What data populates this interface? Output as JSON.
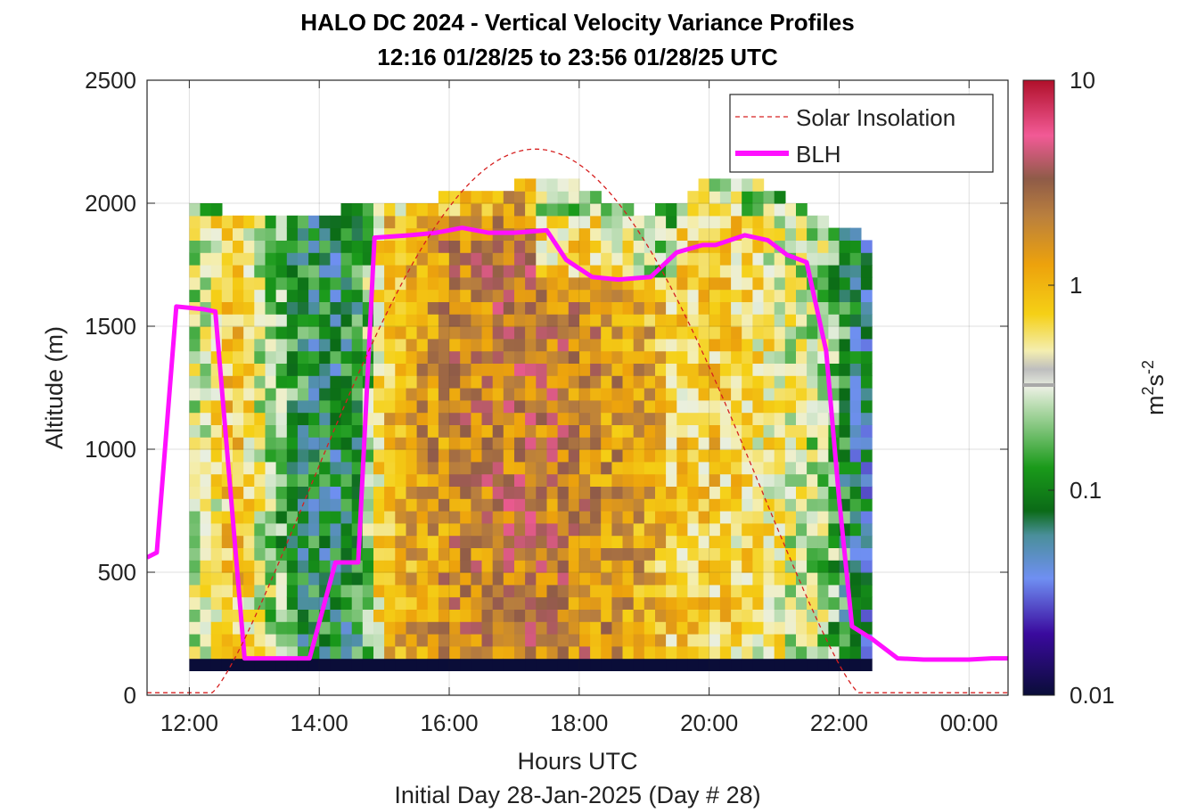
{
  "chart_data": {
    "type": "heatmap",
    "title": "HALO DC 2024 - Vertical Velocity Variance Profiles",
    "subtitle": "12:16 01/28/25 to 23:56 01/28/25  UTC",
    "xlabel": "Hours UTC",
    "xlabel2": "Initial Day 28-Jan-2025 (Day # 28)",
    "ylabel": "Altitude (m)",
    "colorbar_label_base": "m",
    "colorbar_label_mid": "s",
    "colorbar_label_sup1": "2",
    "colorbar_label_sup2": "-2",
    "xlim": [
      11.35,
      24.6
    ],
    "ylim": [
      0,
      2500
    ],
    "xticks": [
      12,
      14,
      16,
      18,
      20,
      22,
      24
    ],
    "xtick_labels": [
      "12:00",
      "14:00",
      "16:00",
      "18:00",
      "20:00",
      "22:00",
      "00:00"
    ],
    "yticks": [
      0,
      500,
      1000,
      1500,
      2000,
      2500
    ],
    "ytick_labels": [
      "0",
      "500",
      "1000",
      "1500",
      "2000",
      "2500"
    ],
    "colorbar": {
      "scale": "log",
      "range": [
        0.01,
        10
      ],
      "ticks": [
        0.01,
        0.1,
        1,
        10
      ],
      "tick_labels": [
        "0.01",
        "0.1",
        "1",
        "10"
      ]
    },
    "grid": true,
    "legend_position": "top-right",
    "legend": [
      {
        "name": "Solar Insolation",
        "style": "dashed",
        "color": "#d62020"
      },
      {
        "name": "BLH",
        "style": "solid",
        "color": "#ff10ff"
      }
    ],
    "heatmap": {
      "x_start": 12.0,
      "x_step": 0.1667,
      "columns": 63,
      "y_start": 100,
      "y_step": 50,
      "rows": 40,
      "description_regime": "approximate reconstruction of log10 variance field"
    },
    "series": [
      {
        "name": "BLH",
        "x": [
          11.35,
          11.5,
          11.8,
          12.2,
          12.4,
          12.85,
          13.4,
          13.85,
          14.25,
          14.6,
          14.85,
          15.4,
          15.8,
          16.2,
          16.6,
          17.0,
          17.5,
          17.8,
          18.2,
          18.6,
          19.1,
          19.5,
          19.9,
          20.1,
          20.55,
          20.9,
          21.2,
          21.5,
          21.8,
          22.0,
          22.2,
          22.5,
          22.9,
          23.3,
          23.7,
          24.0,
          24.35,
          24.6
        ],
        "y": [
          560,
          580,
          1580,
          1570,
          1560,
          150,
          150,
          150,
          540,
          540,
          1860,
          1870,
          1880,
          1900,
          1880,
          1880,
          1890,
          1770,
          1700,
          1690,
          1700,
          1800,
          1830,
          1830,
          1870,
          1850,
          1790,
          1760,
          1400,
          800,
          280,
          230,
          150,
          145,
          145,
          145,
          150,
          150
        ]
      },
      {
        "name": "Solar Insolation",
        "sunrise": 12.35,
        "sunset": 22.3,
        "peak_x": 17.3,
        "peak_y": 2220,
        "baseline_y": 10
      }
    ]
  }
}
